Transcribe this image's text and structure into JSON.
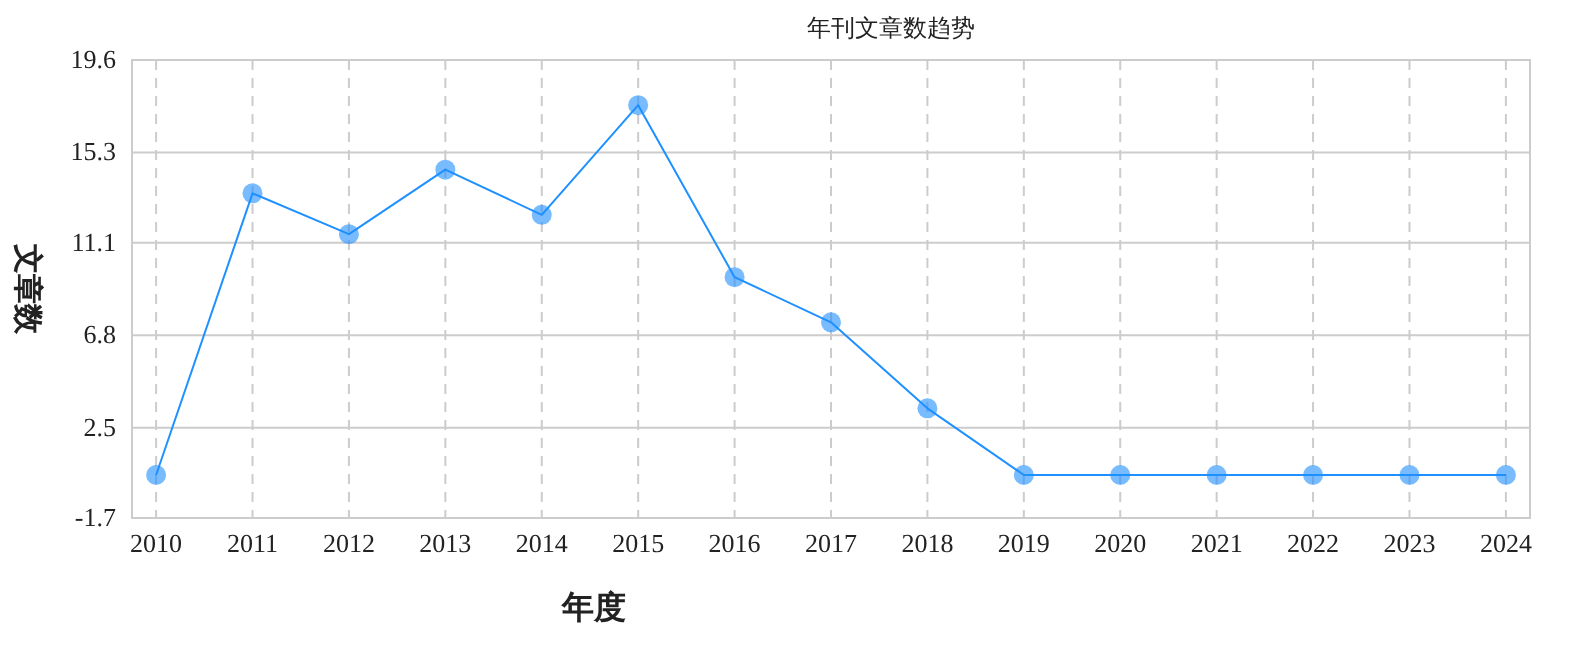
{
  "chart_data": {
    "type": "line",
    "title": "年刊文章数趋势",
    "xlabel": "年度",
    "ylabel": "文章数",
    "categories": [
      "2010",
      "2011",
      "2012",
      "2013",
      "2014",
      "2015",
      "2016",
      "2017",
      "2018",
      "2019",
      "2020",
      "2021",
      "2022",
      "2023",
      "2024"
    ],
    "series": [
      {
        "color": "#1e90ff",
        "values": [
          0.3,
          13.4,
          11.5,
          14.5,
          12.4,
          17.5,
          9.5,
          7.4,
          3.4,
          0.3,
          0.3,
          0.3,
          0.3,
          0.3,
          0.3
        ]
      }
    ],
    "ylim": [
      -1.7,
      19.6
    ],
    "yticks": [
      -1.7,
      2.5,
      6.8,
      11.1,
      15.3,
      19.6
    ],
    "grid": true,
    "marker": "circle",
    "line_style": "solid"
  }
}
